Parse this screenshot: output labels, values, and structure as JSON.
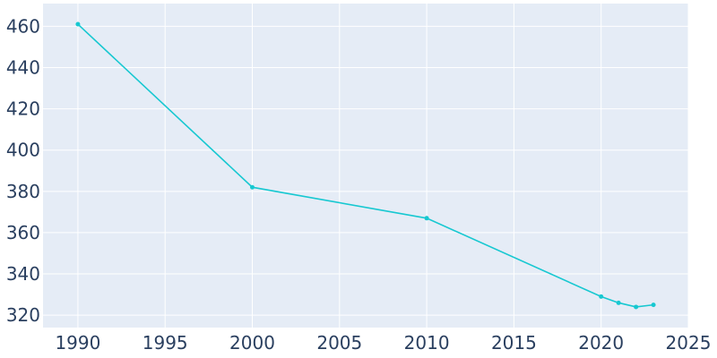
{
  "chart_data": {
    "type": "line",
    "title": "",
    "xlabel": "",
    "ylabel": "",
    "xlim": [
      1988,
      2025
    ],
    "ylim": [
      314,
      471
    ],
    "x_ticks": [
      1990,
      1995,
      2000,
      2005,
      2010,
      2015,
      2020,
      2025
    ],
    "y_ticks": [
      320,
      340,
      360,
      380,
      400,
      420,
      440,
      460
    ],
    "grid": true,
    "series": [
      {
        "color": "#17c8d1",
        "x": [
          1990,
          2000,
          2010,
          2020,
          2021,
          2022,
          2023
        ],
        "values": [
          461,
          382,
          367,
          329,
          326,
          324,
          325
        ]
      }
    ]
  },
  "colors": {
    "plot_background": "#e5ecf6",
    "grid": "#ffffff",
    "tick_text": "#2a3f5f"
  }
}
